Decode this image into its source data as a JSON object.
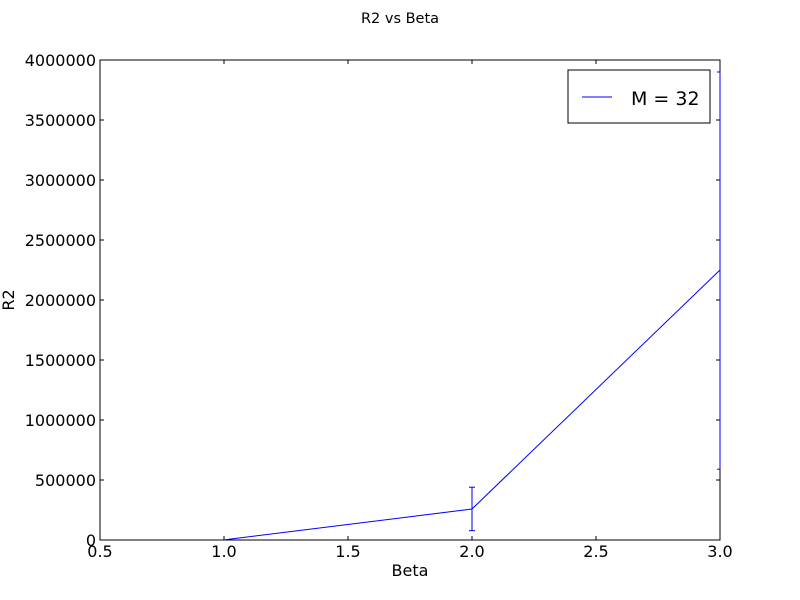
{
  "chart_data": {
    "type": "line",
    "title": "R2 vs Beta",
    "xlabel": "Beta",
    "ylabel": "R2",
    "xlim": [
      0.5,
      3.0
    ],
    "ylim": [
      0,
      4000000
    ],
    "xticks": [
      0.5,
      1.0,
      1.5,
      2.0,
      2.5,
      3.0
    ],
    "xtick_labels": [
      "0.5",
      "1.0",
      "1.5",
      "2.0",
      "2.5",
      "3.0"
    ],
    "yticks": [
      0,
      500000,
      1000000,
      1500000,
      2000000,
      2500000,
      3000000,
      3500000,
      4000000
    ],
    "ytick_labels": [
      "0",
      "500000",
      "1000000",
      "1500000",
      "2000000",
      "2500000",
      "3000000",
      "3500000",
      "4000000"
    ],
    "grid": false,
    "legend_position": "top-right",
    "series": [
      {
        "name": "M = 32",
        "color": "#0000ff",
        "x": [
          1.0,
          2.0,
          3.0
        ],
        "y": [
          1000,
          258000,
          2250000
        ],
        "yerr_low": [
          0,
          78000,
          590000
        ],
        "yerr_high": [
          0,
          440000,
          3900000
        ]
      }
    ]
  }
}
